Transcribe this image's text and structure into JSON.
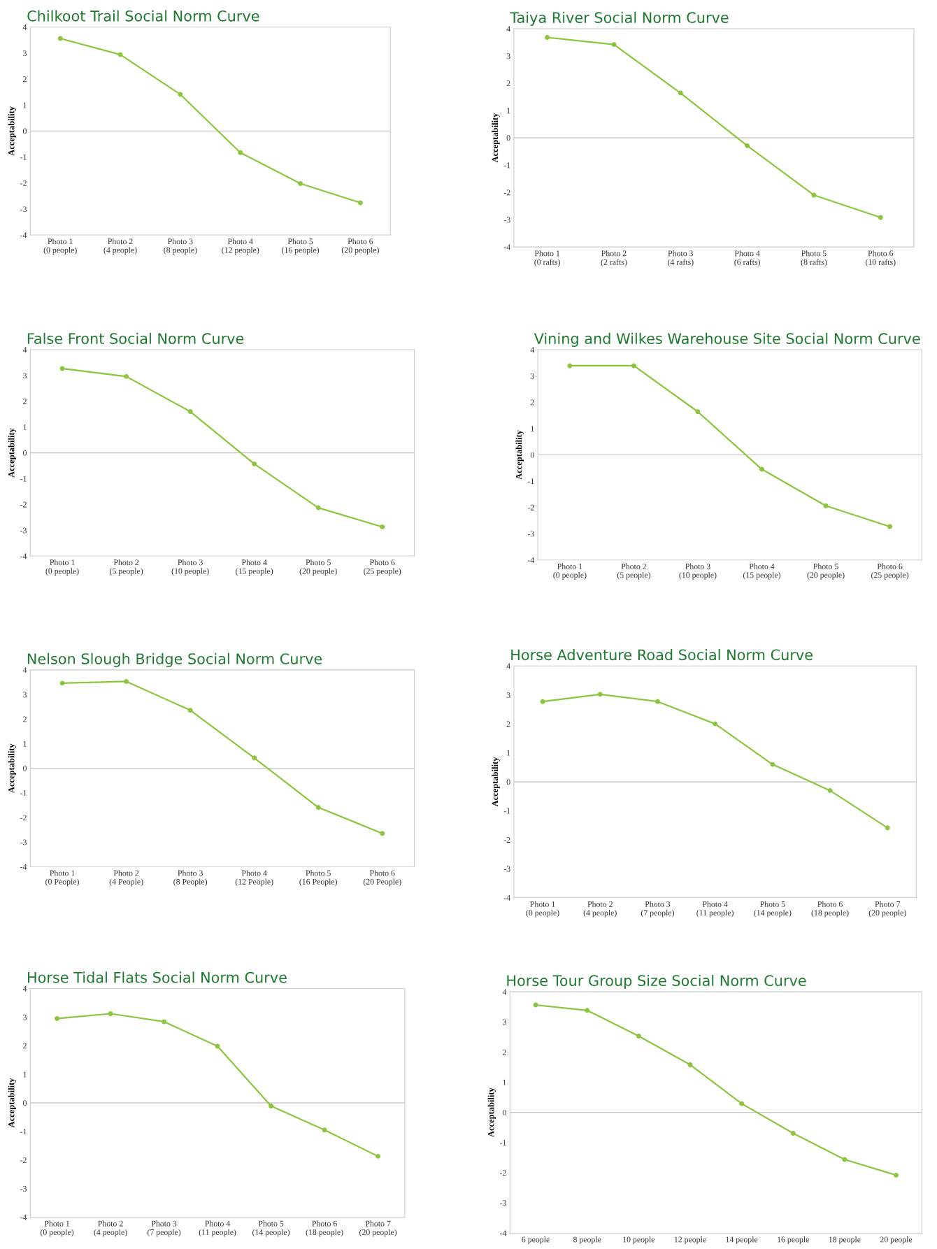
{
  "chart_data": [
    {
      "type": "line",
      "title": "Chilkoot Trail Social Norm Curve",
      "ylabel": "Acceptability",
      "categories": [
        "Photo 1\n(0 people)",
        "Photo 2\n(4 people)",
        "Photo 3\n(8 people)",
        "Photo 4\n(12 people)",
        "Photo 5\n(16 people)",
        "Photo 6\n(20 people)"
      ],
      "series": [
        {
          "color": "#8cc63f",
          "values": [
            3.56,
            2.94,
            1.41,
            -0.83,
            -2.02,
            -2.76
          ]
        }
      ],
      "ylim": [
        -4,
        4
      ],
      "yticks": [
        -4,
        -3,
        -2,
        -1,
        0,
        1,
        2,
        3,
        4
      ],
      "ref_lines": [
        {
          "axis": "y",
          "value": 0,
          "color": "#c8c8c8"
        }
      ],
      "marker": "circle",
      "grid": false,
      "legend": false
    },
    {
      "type": "line",
      "title": "Taiya River Social Norm Curve",
      "ylabel": "Acceptability",
      "categories": [
        "Photo 1\n(0 rafts)",
        "Photo 2\n(2 rafts)",
        "Photo 3\n(4 rafts)",
        "Photo 4\n(6 rafts)",
        "Photo 5\n(8 rafts)",
        "Photo 6\n(10 rafts)"
      ],
      "series": [
        {
          "color": "#8cc63f",
          "values": [
            3.68,
            3.42,
            1.64,
            -0.29,
            -2.1,
            -2.92
          ]
        }
      ],
      "ylim": [
        -4,
        4
      ],
      "yticks": [
        -4,
        -3,
        -2,
        -1,
        0,
        1,
        2,
        3,
        4
      ],
      "ref_lines": [
        {
          "axis": "y",
          "value": 0,
          "color": "#c8c8c8"
        }
      ],
      "marker": "circle",
      "grid": false,
      "legend": false
    },
    {
      "type": "line",
      "title": "False Front Social Norm Curve",
      "ylabel": "Acceptability",
      "categories": [
        "Photo 1\n(0 people)",
        "Photo 2\n(5 people)",
        "Photo 3\n(10 people)",
        "Photo 4\n(15 people)",
        "Photo 5\n(20 people)",
        "Photo 6\n(25 people)"
      ],
      "series": [
        {
          "color": "#8cc63f",
          "values": [
            3.27,
            2.96,
            1.6,
            -0.43,
            -2.13,
            -2.87
          ]
        }
      ],
      "ylim": [
        -4,
        4
      ],
      "yticks": [
        -4,
        -3,
        -2,
        -1,
        0,
        1,
        2,
        3,
        4
      ],
      "ref_lines": [
        {
          "axis": "y",
          "value": 0,
          "color": "#c8c8c8"
        }
      ],
      "marker": "circle",
      "grid": false,
      "legend": false
    },
    {
      "type": "line",
      "title": "Vining and Wilkes Warehouse Site Social Norm Curve",
      "ylabel": "Acceptability",
      "categories": [
        "Photo 1\n(0 people)",
        "Photo 2\n(5 people)",
        "Photo 3\n(10 people)",
        "Photo 4\n(15 people)",
        "Photo 5\n(20 people)",
        "Photo 6\n(25 people)"
      ],
      "series": [
        {
          "color": "#8cc63f",
          "values": [
            3.39,
            3.39,
            1.64,
            -0.55,
            -1.94,
            -2.73
          ]
        }
      ],
      "ylim": [
        -4,
        4
      ],
      "yticks": [
        -4,
        -3,
        -2,
        -1,
        0,
        1,
        2,
        3,
        4
      ],
      "ref_lines": [
        {
          "axis": "y",
          "value": 0,
          "color": "#c8c8c8"
        }
      ],
      "marker": "circle",
      "grid": false,
      "legend": false
    },
    {
      "type": "line",
      "title": "Nelson Slough Bridge Social Norm Curve",
      "ylabel": "Acceptability",
      "categories": [
        "Photo 1\n(0 People)",
        "Photo 2\n(4 People)",
        "Photo 3\n(8 People)",
        "Photo 4\n(12 People)",
        "Photo 5\n(16 People)",
        "Photo 6\n(20 People)"
      ],
      "series": [
        {
          "color": "#8cc63f",
          "values": [
            3.46,
            3.53,
            2.36,
            0.42,
            -1.59,
            -2.65
          ]
        }
      ],
      "ylim": [
        -4,
        4
      ],
      "yticks": [
        -4,
        -3,
        -2,
        -1,
        0,
        1,
        2,
        3,
        4
      ],
      "ref_lines": [
        {
          "axis": "y",
          "value": 0,
          "color": "#c8c8c8"
        }
      ],
      "marker": "circle",
      "grid": false,
      "legend": false
    },
    {
      "type": "line",
      "title": "Horse Adventure Road Social Norm Curve",
      "ylabel": "Acceptability",
      "categories": [
        "Photo 1\n(0 people)",
        "Photo 2\n(4 people)",
        "Photo 3\n(7 people)",
        "Photo 4\n(11 people)",
        "Photo 5\n(14 people)",
        "Photo 6\n(18 people)",
        "Photo 7\n(20 people)"
      ],
      "series": [
        {
          "color": "#8cc63f",
          "values": [
            2.77,
            3.02,
            2.77,
            2.0,
            0.6,
            -0.3,
            -1.59
          ]
        }
      ],
      "ylim": [
        -4,
        4
      ],
      "yticks": [
        -4,
        -3,
        -2,
        -1,
        0,
        1,
        2,
        3,
        4
      ],
      "ref_lines": [
        {
          "axis": "y",
          "value": 0,
          "color": "#c8c8c8"
        }
      ],
      "marker": "circle",
      "grid": false,
      "legend": false
    },
    {
      "type": "line",
      "title": "Horse Tidal Flats Social Norm Curve",
      "ylabel": "Acceptability",
      "categories": [
        "Photo 1\n(0 people)",
        "Photo 2\n(4 people)",
        "Photo 3\n(7 people)",
        "Photo 4\n(11 people)",
        "Photo 5\n(14 people)",
        "Photo 6\n(18 people)",
        "Photo 7\n(20 people)"
      ],
      "series": [
        {
          "color": "#8cc63f",
          "values": [
            2.95,
            3.12,
            2.84,
            1.98,
            -0.11,
            -0.95,
            -1.87
          ]
        }
      ],
      "ylim": [
        -4,
        4
      ],
      "yticks": [
        -4,
        -3,
        -2,
        -1,
        0,
        1,
        2,
        3,
        4
      ],
      "ref_lines": [
        {
          "axis": "y",
          "value": 0,
          "color": "#c8c8c8"
        }
      ],
      "marker": "circle",
      "grid": false,
      "legend": false
    },
    {
      "type": "line",
      "title": "Horse Tour Group Size Social Norm Curve",
      "ylabel": "Acceptability",
      "categories": [
        "6 people",
        "8 people",
        "10 people",
        "12 people",
        "14 people",
        "16 people",
        "18 people",
        "20 people"
      ],
      "series": [
        {
          "color": "#8cc63f",
          "values": [
            3.56,
            3.38,
            2.53,
            1.58,
            0.29,
            -0.69,
            -1.56,
            -2.08
          ]
        }
      ],
      "ylim": [
        -4,
        4
      ],
      "yticks": [
        -4,
        -3,
        -2,
        -1,
        0,
        1,
        2,
        3,
        4
      ],
      "ref_lines": [
        {
          "axis": "y",
          "value": 0,
          "color": "#c8c8c8"
        }
      ],
      "marker": "circle",
      "grid": false,
      "legend": false
    }
  ]
}
